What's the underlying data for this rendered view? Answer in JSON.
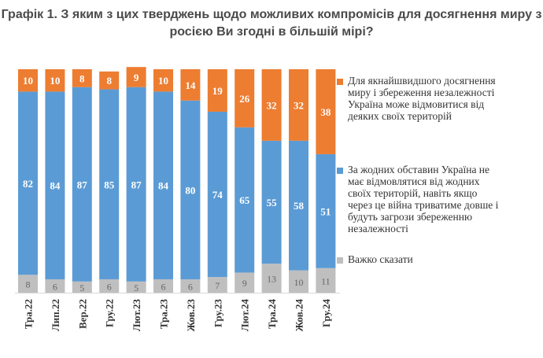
{
  "title_lines": [
    "Графік 1. З яким з цих тверджень щодо можливих компромісів для досягнення миру з",
    "росією Ви згодні в більшій мірі?"
  ],
  "colors": {
    "orange": "#ed7d31",
    "blue": "#5b9bd5",
    "gray": "#bfbfbf"
  },
  "chart_data": {
    "type": "bar",
    "stacked": true,
    "categories": [
      "Тра.22",
      "Лип.22",
      "Вер.22",
      "Гру.22",
      "Лют.23",
      "Тра.23",
      "Жов.23",
      "Гру.23",
      "Лют.24",
      "Тра.24",
      "Жов.24",
      "Гру.24"
    ],
    "series": [
      {
        "name": "Важко сказати",
        "color": "#bfbfbf",
        "values": [
          8,
          6,
          5,
          6,
          5,
          6,
          6,
          7,
          9,
          13,
          10,
          11
        ]
      },
      {
        "name": "За жодних обставин Україна не має відмовлятися від жодних своїх територій, навіть якщо через це війна триватиме довше і будуть загрози збереженню незалежності",
        "color": "#5b9bd5",
        "values": [
          82,
          84,
          87,
          85,
          87,
          84,
          80,
          74,
          65,
          55,
          58,
          51
        ]
      },
      {
        "name": "Для якнайшвидшого досягнення миру і збереження незалежності Україна може відмовитися від деяких своїх територій",
        "color": "#ed7d31",
        "values": [
          10,
          10,
          8,
          8,
          9,
          10,
          14,
          19,
          26,
          32,
          32,
          38
        ]
      }
    ],
    "ylim": [
      0,
      100
    ],
    "legend": "right"
  },
  "legend_lines": [
    [
      "Для якнайшвидшого досягнення",
      "миру і збереження незалежності",
      "Україна може відмовитися від",
      "деяких своїх територій"
    ],
    [
      "За жодних обставин Україна не",
      "має відмовлятися від жодних",
      "своїх територій, навіть якщо",
      "через це війна триватиме довше і",
      "будуть загрози збереженню",
      "незалежності"
    ],
    [
      "Важко сказати"
    ]
  ]
}
